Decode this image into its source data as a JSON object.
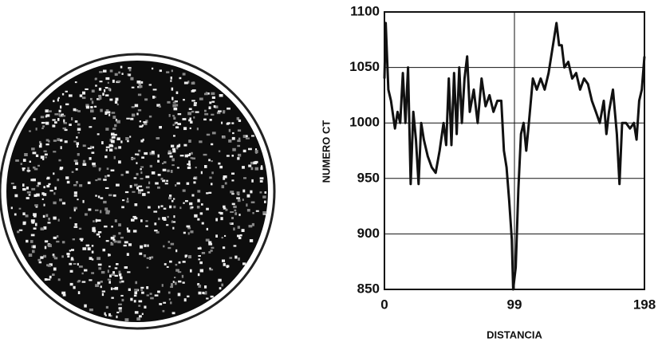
{
  "chart_data": {
    "type": "line",
    "x_label": "DISTANCIA",
    "y_label": "NUMERO CT",
    "x": [
      0,
      1,
      3,
      5,
      8,
      10,
      12,
      14,
      16,
      18,
      20,
      22,
      24,
      26,
      28,
      30,
      33,
      36,
      39,
      42,
      45,
      47,
      49,
      51,
      53,
      55,
      57,
      59,
      61,
      63,
      65,
      68,
      71,
      74,
      77,
      80,
      83,
      86,
      89,
      91,
      93,
      95,
      97,
      98,
      100,
      102,
      104,
      106,
      108,
      110,
      113,
      116,
      119,
      122,
      125,
      127,
      129,
      131,
      133,
      135,
      137,
      140,
      143,
      146,
      149,
      152,
      155,
      158,
      161,
      164,
      167,
      169,
      171,
      174,
      177,
      179,
      181,
      184,
      187,
      190,
      192,
      194,
      196,
      198
    ],
    "series": [
      {
        "name": "NUMERO CT",
        "color": "#111111",
        "values": [
          1040,
          1090,
          1030,
          1020,
          995,
          1010,
          1000,
          1045,
          1000,
          1050,
          945,
          1010,
          985,
          945,
          1000,
          985,
          970,
          960,
          955,
          975,
          1000,
          980,
          1040,
          980,
          1045,
          990,
          1050,
          1000,
          1040,
          1060,
          1010,
          1030,
          1000,
          1040,
          1015,
          1025,
          1010,
          1020,
          1020,
          975,
          960,
          930,
          895,
          850,
          870,
          940,
          990,
          1000,
          975,
          1000,
          1040,
          1030,
          1040,
          1030,
          1045,
          1060,
          1075,
          1090,
          1070,
          1070,
          1050,
          1055,
          1040,
          1045,
          1030,
          1040,
          1035,
          1020,
          1010,
          1000,
          1020,
          990,
          1010,
          1030,
          990,
          945,
          1000,
          1000,
          995,
          1000,
          985,
          1020,
          1030,
          1060
        ]
      }
    ],
    "xlim": [
      0,
      198
    ],
    "xticks": [
      0,
      99,
      198
    ],
    "ylim": [
      850,
      1100
    ],
    "yticks": [
      850,
      900,
      950,
      1000,
      1050,
      1100
    ],
    "grid": true
  }
}
